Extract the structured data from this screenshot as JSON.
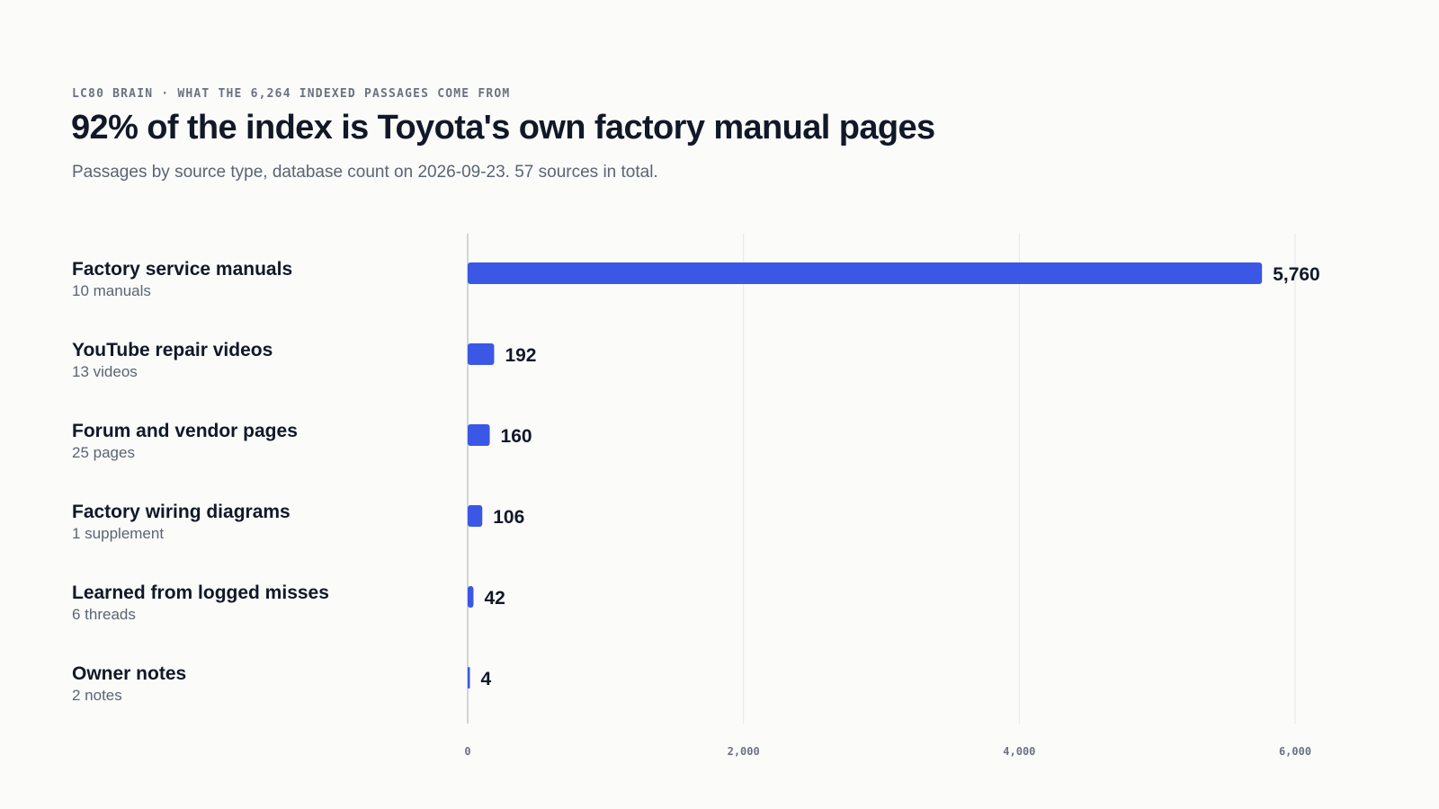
{
  "header": {
    "eyebrow": "LC80 BRAIN · WHAT THE 6,264 INDEXED PASSAGES COME FROM",
    "title": "92% of the index is Toyota's own factory manual pages",
    "subtitle": "Passages by source type, database count on 2026-09-23. 57 sources in total."
  },
  "colors": {
    "bar": "#3b57e6",
    "gridline": "#e5e7eb",
    "axis": "#c4c7cc",
    "background": "#fbfbfa"
  },
  "chart_data": {
    "type": "bar",
    "orientation": "horizontal",
    "title": "92% of the index is Toyota's own factory manual pages",
    "subtitle": "Passages by source type, database count on 2026-09-23. 57 sources in total.",
    "categories": [
      "Factory service manuals",
      "YouTube repair videos",
      "Forum and vendor pages",
      "Factory wiring diagrams",
      "Learned from logged misses",
      "Owner notes"
    ],
    "category_notes": [
      "10 manuals",
      "13 videos",
      "25 pages",
      "1 supplement",
      "6 threads",
      "2 notes"
    ],
    "values": [
      5760,
      192,
      160,
      106,
      42,
      4
    ],
    "value_labels": [
      "5,760",
      "192",
      "160",
      "106",
      "42",
      "4"
    ],
    "xlim": [
      0,
      6000
    ],
    "xticks": [
      0,
      2000,
      4000,
      6000
    ],
    "xtick_labels": [
      "0",
      "2,000",
      "4,000",
      "6,000"
    ],
    "xlabel": "",
    "ylabel": "",
    "grid": true,
    "legend": "none"
  }
}
